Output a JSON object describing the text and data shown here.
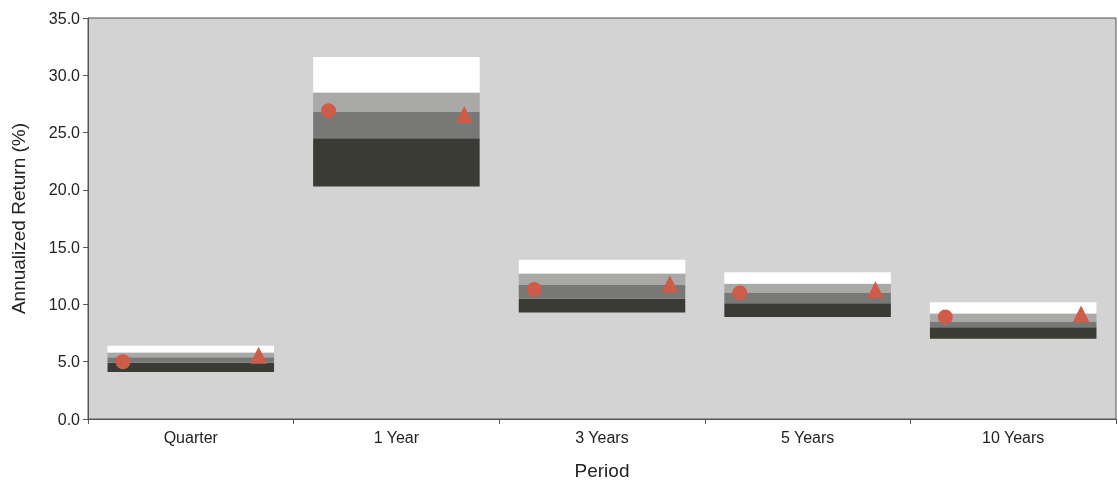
{
  "chart_data": {
    "type": "bar",
    "xlabel": "Period",
    "ylabel": "Annualized Return (%)",
    "categories": [
      "Quarter",
      "1 Year",
      "3 Years",
      "5 Years",
      "10 Years"
    ],
    "series": [
      {
        "color": "#3b3b35",
        "base": [
          4.1,
          20.3,
          9.3,
          8.9,
          7.0
        ],
        "values": [
          0.8,
          4.2,
          1.2,
          1.2,
          1.0
        ]
      },
      {
        "color": "#787876",
        "base": [
          4.9,
          24.5,
          10.5,
          10.1,
          8.0
        ],
        "values": [
          0.5,
          2.3,
          1.2,
          0.9,
          0.5
        ]
      },
      {
        "color": "#a9a9a7",
        "base": [
          5.4,
          26.8,
          11.7,
          11.0,
          8.5
        ],
        "values": [
          0.4,
          1.7,
          1.0,
          0.8,
          0.7
        ]
      },
      {
        "color": "#ffffff",
        "base": [
          5.8,
          28.5,
          12.7,
          11.8,
          9.2
        ],
        "values": [
          0.6,
          3.1,
          1.2,
          1.0,
          1.0
        ]
      },
      {
        "type": "scatter",
        "marker": "circle",
        "color": "#cd5c49",
        "x": [
          "Quarter",
          "1 Year",
          "3 Years",
          "5 Years",
          "10 Years"
        ],
        "values": [
          5.0,
          26.9,
          11.3,
          11.0,
          8.9
        ]
      },
      {
        "type": "scatter",
        "marker": "triangle",
        "color": "#cd5c49",
        "x": [
          "Quarter",
          "1 Year",
          "3 Years",
          "5 Years",
          "10 Years"
        ],
        "values": [
          5.4,
          26.4,
          11.6,
          11.1,
          9.0
        ]
      }
    ],
    "ylim": [
      0,
      35
    ],
    "yticks": [
      {
        "value": 0,
        "label": "0.0"
      },
      {
        "value": 5,
        "label": "5.0"
      },
      {
        "value": 10,
        "label": "10.0"
      },
      {
        "value": 15,
        "label": "15.0"
      },
      {
        "value": 20,
        "label": "20.0"
      },
      {
        "value": 25,
        "label": "25.0"
      },
      {
        "value": 30,
        "label": "30.0"
      },
      {
        "value": 35,
        "label": "35.0"
      }
    ],
    "grid": false
  }
}
